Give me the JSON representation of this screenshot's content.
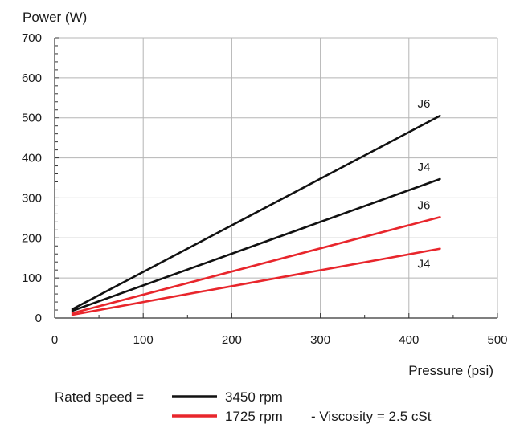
{
  "chart_data": {
    "type": "line",
    "ylabel": "Power (W)",
    "xlabel": "Pressure (psi)",
    "xlim": [
      0,
      500
    ],
    "ylim": [
      0,
      700
    ],
    "x_ticks": [
      0,
      100,
      200,
      300,
      400,
      500
    ],
    "y_ticks": [
      0,
      100,
      200,
      300,
      400,
      500,
      600,
      700
    ],
    "grid": true,
    "series": [
      {
        "name": "J6",
        "color": "#111111",
        "points": [
          [
            20,
            22
          ],
          [
            435,
            505
          ]
        ]
      },
      {
        "name": "J4",
        "color": "#111111",
        "points": [
          [
            20,
            18
          ],
          [
            435,
            347
          ]
        ]
      },
      {
        "name": "J6",
        "color": "#e8262c",
        "points": [
          [
            20,
            12
          ],
          [
            435,
            252
          ]
        ]
      },
      {
        "name": "J4",
        "color": "#e8262c",
        "points": [
          [
            20,
            8
          ],
          [
            435,
            173
          ]
        ]
      }
    ],
    "legend": {
      "prefix": "Rated speed =",
      "entries": [
        {
          "label": "3450 rpm",
          "color": "#111111"
        },
        {
          "label": "1725 rpm",
          "color": "#e8262c"
        }
      ],
      "note": "-  Viscosity = 2.5 cSt"
    }
  }
}
